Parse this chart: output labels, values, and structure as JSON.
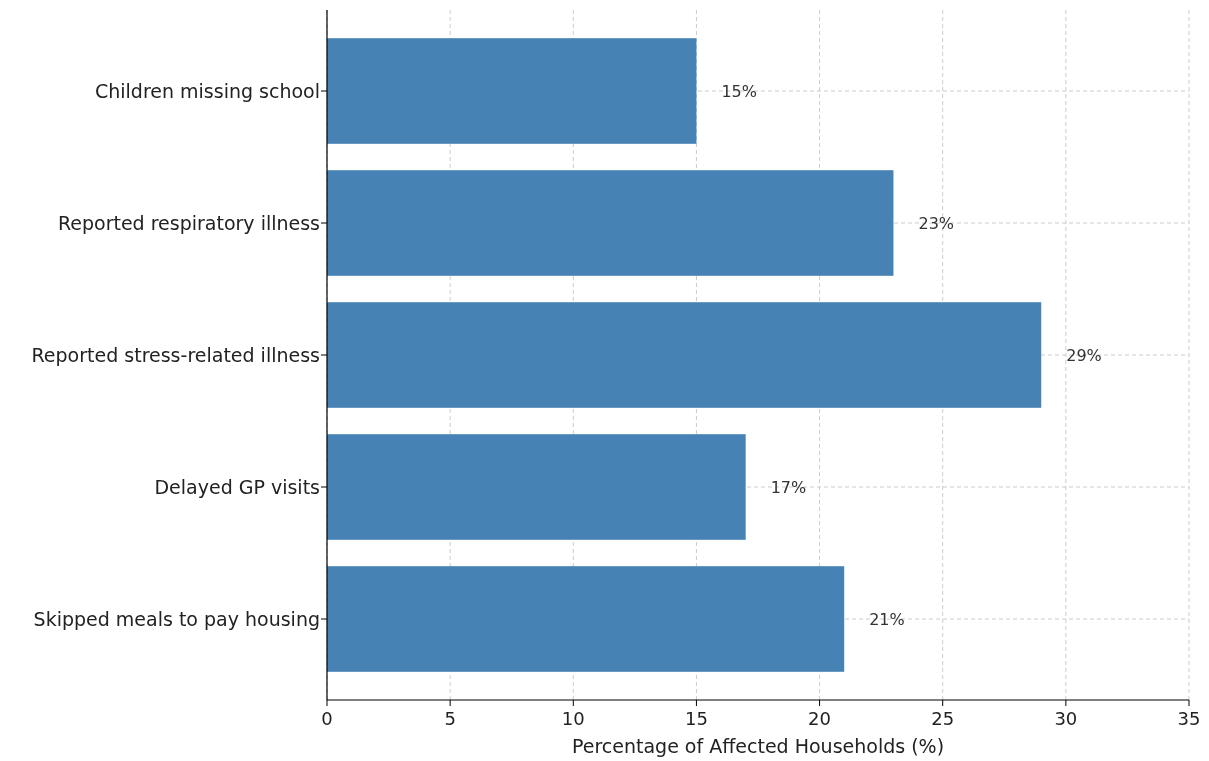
{
  "chart_data": {
    "type": "bar",
    "orientation": "horizontal",
    "xlabel": "Percentage of Affected Households (%)",
    "categories": [
      "Children missing school",
      "Reported respiratory illness",
      "Reported stress-related illness",
      "Delayed GP visits",
      "Skipped meals to pay housing"
    ],
    "values": [
      15,
      23,
      29,
      17,
      21
    ],
    "value_labels": [
      "15%",
      "23%",
      "29%",
      "17%",
      "21%"
    ],
    "color": "#4682b4",
    "xlim": [
      0,
      35
    ],
    "xticks": [
      0,
      5,
      10,
      15,
      20,
      25,
      30,
      35
    ],
    "grid": true
  }
}
